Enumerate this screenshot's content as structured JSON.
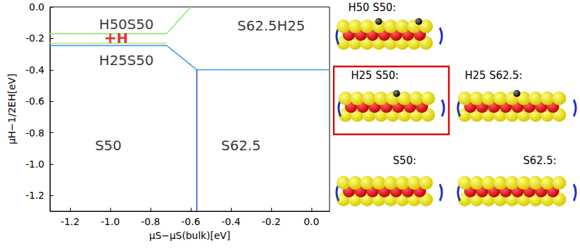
{
  "chart_data": {
    "type": "line",
    "xlabel": "μS−μS(bulk)[eV]",
    "ylabel": "μH−1/2EH[eV]",
    "xlim": [
      -1.3,
      0.09
    ],
    "ylim": [
      -1.3,
      0.0
    ],
    "xticks": [
      -1.2,
      {
        "value": -1.0,
        "label": "-1.0"
      },
      -0.8,
      -0.6,
      -0.4,
      -0.2,
      {
        "value": 0,
        "label": "0.0"
      }
    ],
    "yticks": [
      {
        "value": 0,
        "label": "0.0"
      },
      -0.2,
      -0.4,
      -0.6,
      -0.8,
      {
        "value": -1.0,
        "label": "-1.0"
      },
      -1.2
    ],
    "grid": false,
    "series": [
      {
        "color": "#90e870",
        "x": [
          -1.3,
          -0.72,
          -0.6
        ],
        "values": [
          -0.17,
          -0.17,
          0.0
        ]
      },
      {
        "color": "#c8e070",
        "x": [
          -1.3,
          -0.72
        ],
        "values": [
          -0.23,
          -0.23
        ]
      },
      {
        "color": "#3a9de0",
        "x": [
          -1.3,
          -0.72,
          -0.57,
          0.09
        ],
        "values": [
          -0.245,
          -0.245,
          -0.4,
          -0.4
        ]
      },
      {
        "color": "#3050e0",
        "x": [
          -0.57,
          -0.57
        ],
        "values": [
          -0.4,
          -1.3
        ]
      }
    ],
    "annotations": [
      {
        "text": "H50S50",
        "x": -0.92,
        "y": -0.11
      },
      {
        "text": "S62.5H25",
        "x": -0.2,
        "y": -0.12
      },
      {
        "text": "H25S50",
        "x": -0.92,
        "y": -0.34
      },
      {
        "text": "S50",
        "x": -1.01,
        "y": -0.88
      },
      {
        "text": "S62.5",
        "x": -0.35,
        "y": -0.88
      },
      {
        "text": "H",
        "x": -1.0,
        "y": -0.2,
        "color": "#dd0000",
        "marker": "plus"
      }
    ]
  },
  "structures": [
    {
      "label": "H50  S50:"
    },
    {
      "label": "H25  S50:",
      "highlighted": true
    },
    {
      "label": "H25  S62.5:"
    },
    {
      "label": "S50:"
    },
    {
      "label": "S62.5:"
    }
  ]
}
